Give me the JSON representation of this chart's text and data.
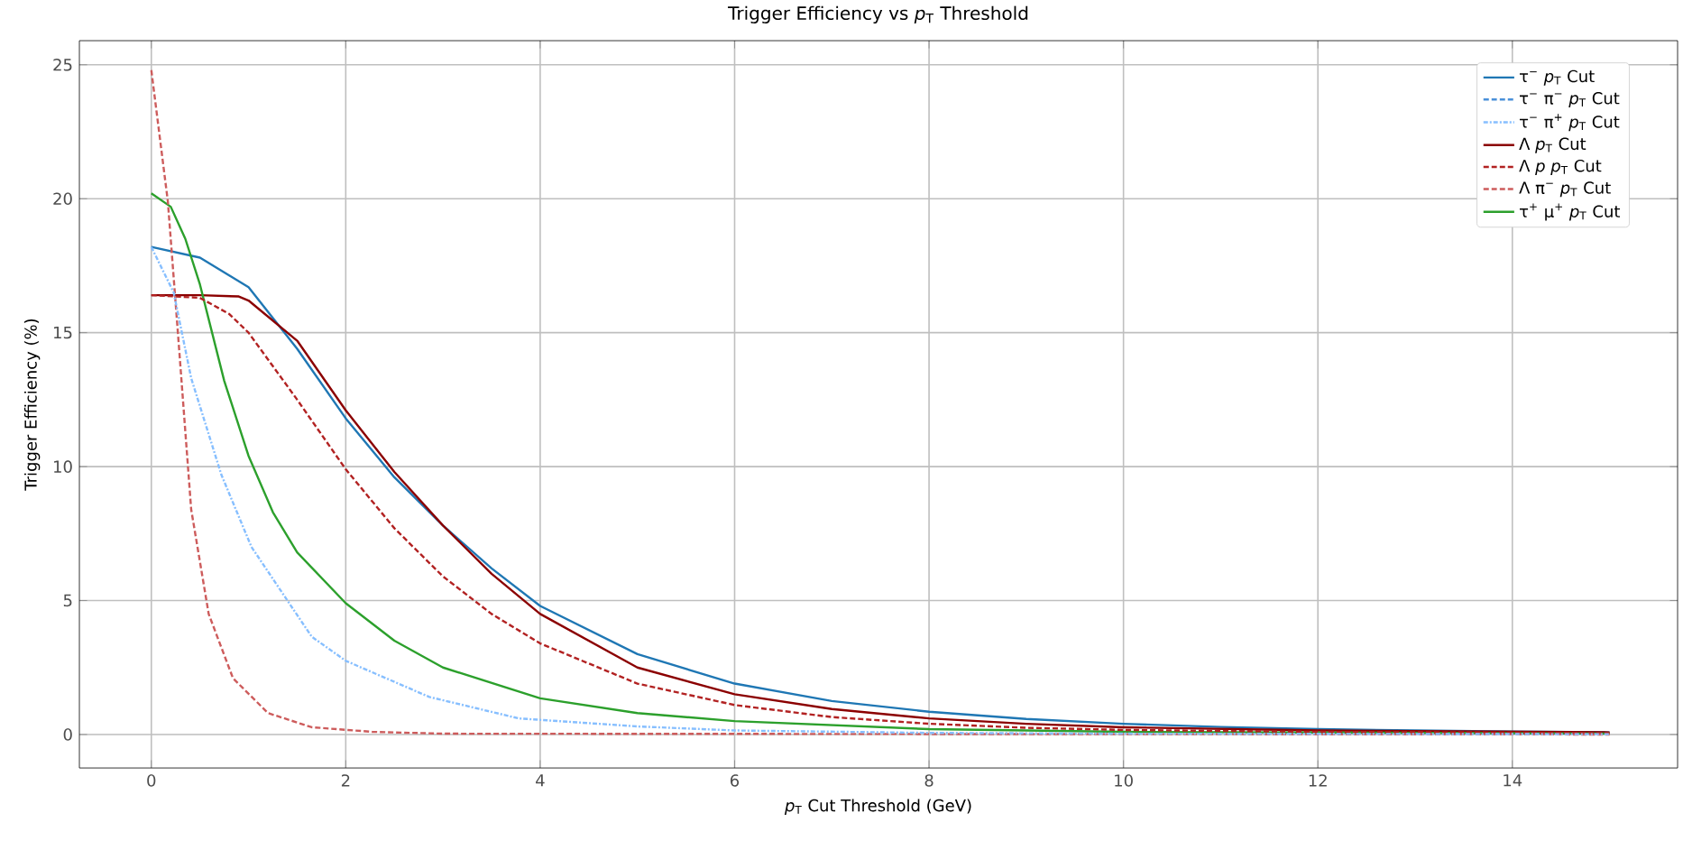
{
  "chart_data": {
    "type": "line",
    "title": "Trigger Efficiency vs *p*$_{T}$ Threshold",
    "xlabel": "*p*$_{T}$ Cut Threshold (GeV)",
    "ylabel": "Trigger Efficiency (%)",
    "xlim": [
      -0.74,
      15.7
    ],
    "ylim": [
      -1.25,
      25.9
    ],
    "xticks": [
      0,
      2,
      4,
      6,
      8,
      10,
      12,
      14
    ],
    "yticks": [
      0,
      5,
      10,
      15,
      20,
      25
    ],
    "grid": true,
    "legend": "top right",
    "series": [
      {
        "name": "τ$^{−}$ *p*$_{T}$ Cut",
        "color": "#1f77b4",
        "line_style": "solid",
        "x": [
          0,
          0.5,
          1,
          1.5,
          2,
          2.5,
          3,
          3.5,
          4,
          5,
          6,
          7,
          8,
          9,
          10,
          11,
          12,
          13,
          14,
          15
        ],
        "values": [
          18.2,
          17.8,
          16.7,
          14.4,
          11.8,
          9.6,
          7.8,
          6.2,
          4.8,
          3.0,
          1.9,
          1.25,
          0.85,
          0.58,
          0.4,
          0.28,
          0.2,
          0.15,
          0.11,
          0.08
        ]
      },
      {
        "name": "τ$^{−}$ π$^{−}$ *p*$_{T}$ Cut",
        "color": "#4a90d9",
        "line_style": "dashed"
      },
      {
        "name": "τ$^{−}$ π$^{+}$ *p*$_{T}$ Cut",
        "color": "#87bfff",
        "line_style": "dashdot",
        "x": [
          0,
          0.23,
          0.41,
          0.72,
          1.03,
          1.65,
          2,
          2.86,
          3.78,
          5,
          6,
          8,
          10,
          15
        ],
        "values": [
          18.2,
          16.5,
          13.3,
          9.7,
          7.0,
          3.65,
          2.75,
          1.4,
          0.6,
          0.3,
          0.15,
          0.06,
          0.03,
          0.01
        ]
      },
      {
        "name": "Λ *p*$_{T}$ Cut",
        "color": "#8b0000",
        "line_style": "solid",
        "x": [
          0,
          0.5,
          0.9,
          1,
          1.5,
          2,
          2.5,
          3,
          3.5,
          4,
          5,
          6,
          7,
          8,
          9,
          10,
          12,
          15
        ],
        "values": [
          16.4,
          16.4,
          16.35,
          16.2,
          14.7,
          12.1,
          9.8,
          7.8,
          6.0,
          4.5,
          2.5,
          1.5,
          0.95,
          0.6,
          0.4,
          0.27,
          0.15,
          0.08
        ]
      },
      {
        "name": "Λ *p* *p*$_{T}$ Cut",
        "color": "#b22222",
        "line_style": "dashed",
        "x": [
          0,
          0.5,
          0.8,
          1,
          1.5,
          2,
          2.5,
          3,
          3.5,
          4,
          5,
          6,
          7,
          8,
          9,
          10,
          12,
          15
        ],
        "values": [
          16.4,
          16.3,
          15.7,
          15.0,
          12.5,
          9.9,
          7.7,
          5.9,
          4.5,
          3.4,
          1.9,
          1.1,
          0.65,
          0.4,
          0.25,
          0.17,
          0.1,
          0.05
        ]
      },
      {
        "name": "Λ π$^{−}$ *p*$_{T}$ Cut",
        "color": "#cd5c5c",
        "line_style": "dashed",
        "x": [
          0,
          0.17,
          0.29,
          0.41,
          0.59,
          0.84,
          1.2,
          1.65,
          2.27,
          3,
          15
        ],
        "values": [
          24.8,
          19.9,
          14.2,
          8.4,
          4.5,
          2.1,
          0.8,
          0.27,
          0.1,
          0.03,
          0
        ]
      },
      {
        "name": "τ$^{+}$ μ$^{+}$ *p*$_{T}$ Cut",
        "color": "#2ca02c",
        "line_style": "solid",
        "x": [
          0,
          0.2,
          0.35,
          0.5,
          0.75,
          1,
          1.25,
          1.5,
          2,
          2.5,
          3,
          4,
          5,
          6,
          8,
          10,
          15
        ],
        "values": [
          20.2,
          19.7,
          18.5,
          16.8,
          13.2,
          10.4,
          8.3,
          6.8,
          4.9,
          3.5,
          2.5,
          1.35,
          0.8,
          0.5,
          0.2,
          0.1,
          0.03
        ]
      }
    ]
  }
}
